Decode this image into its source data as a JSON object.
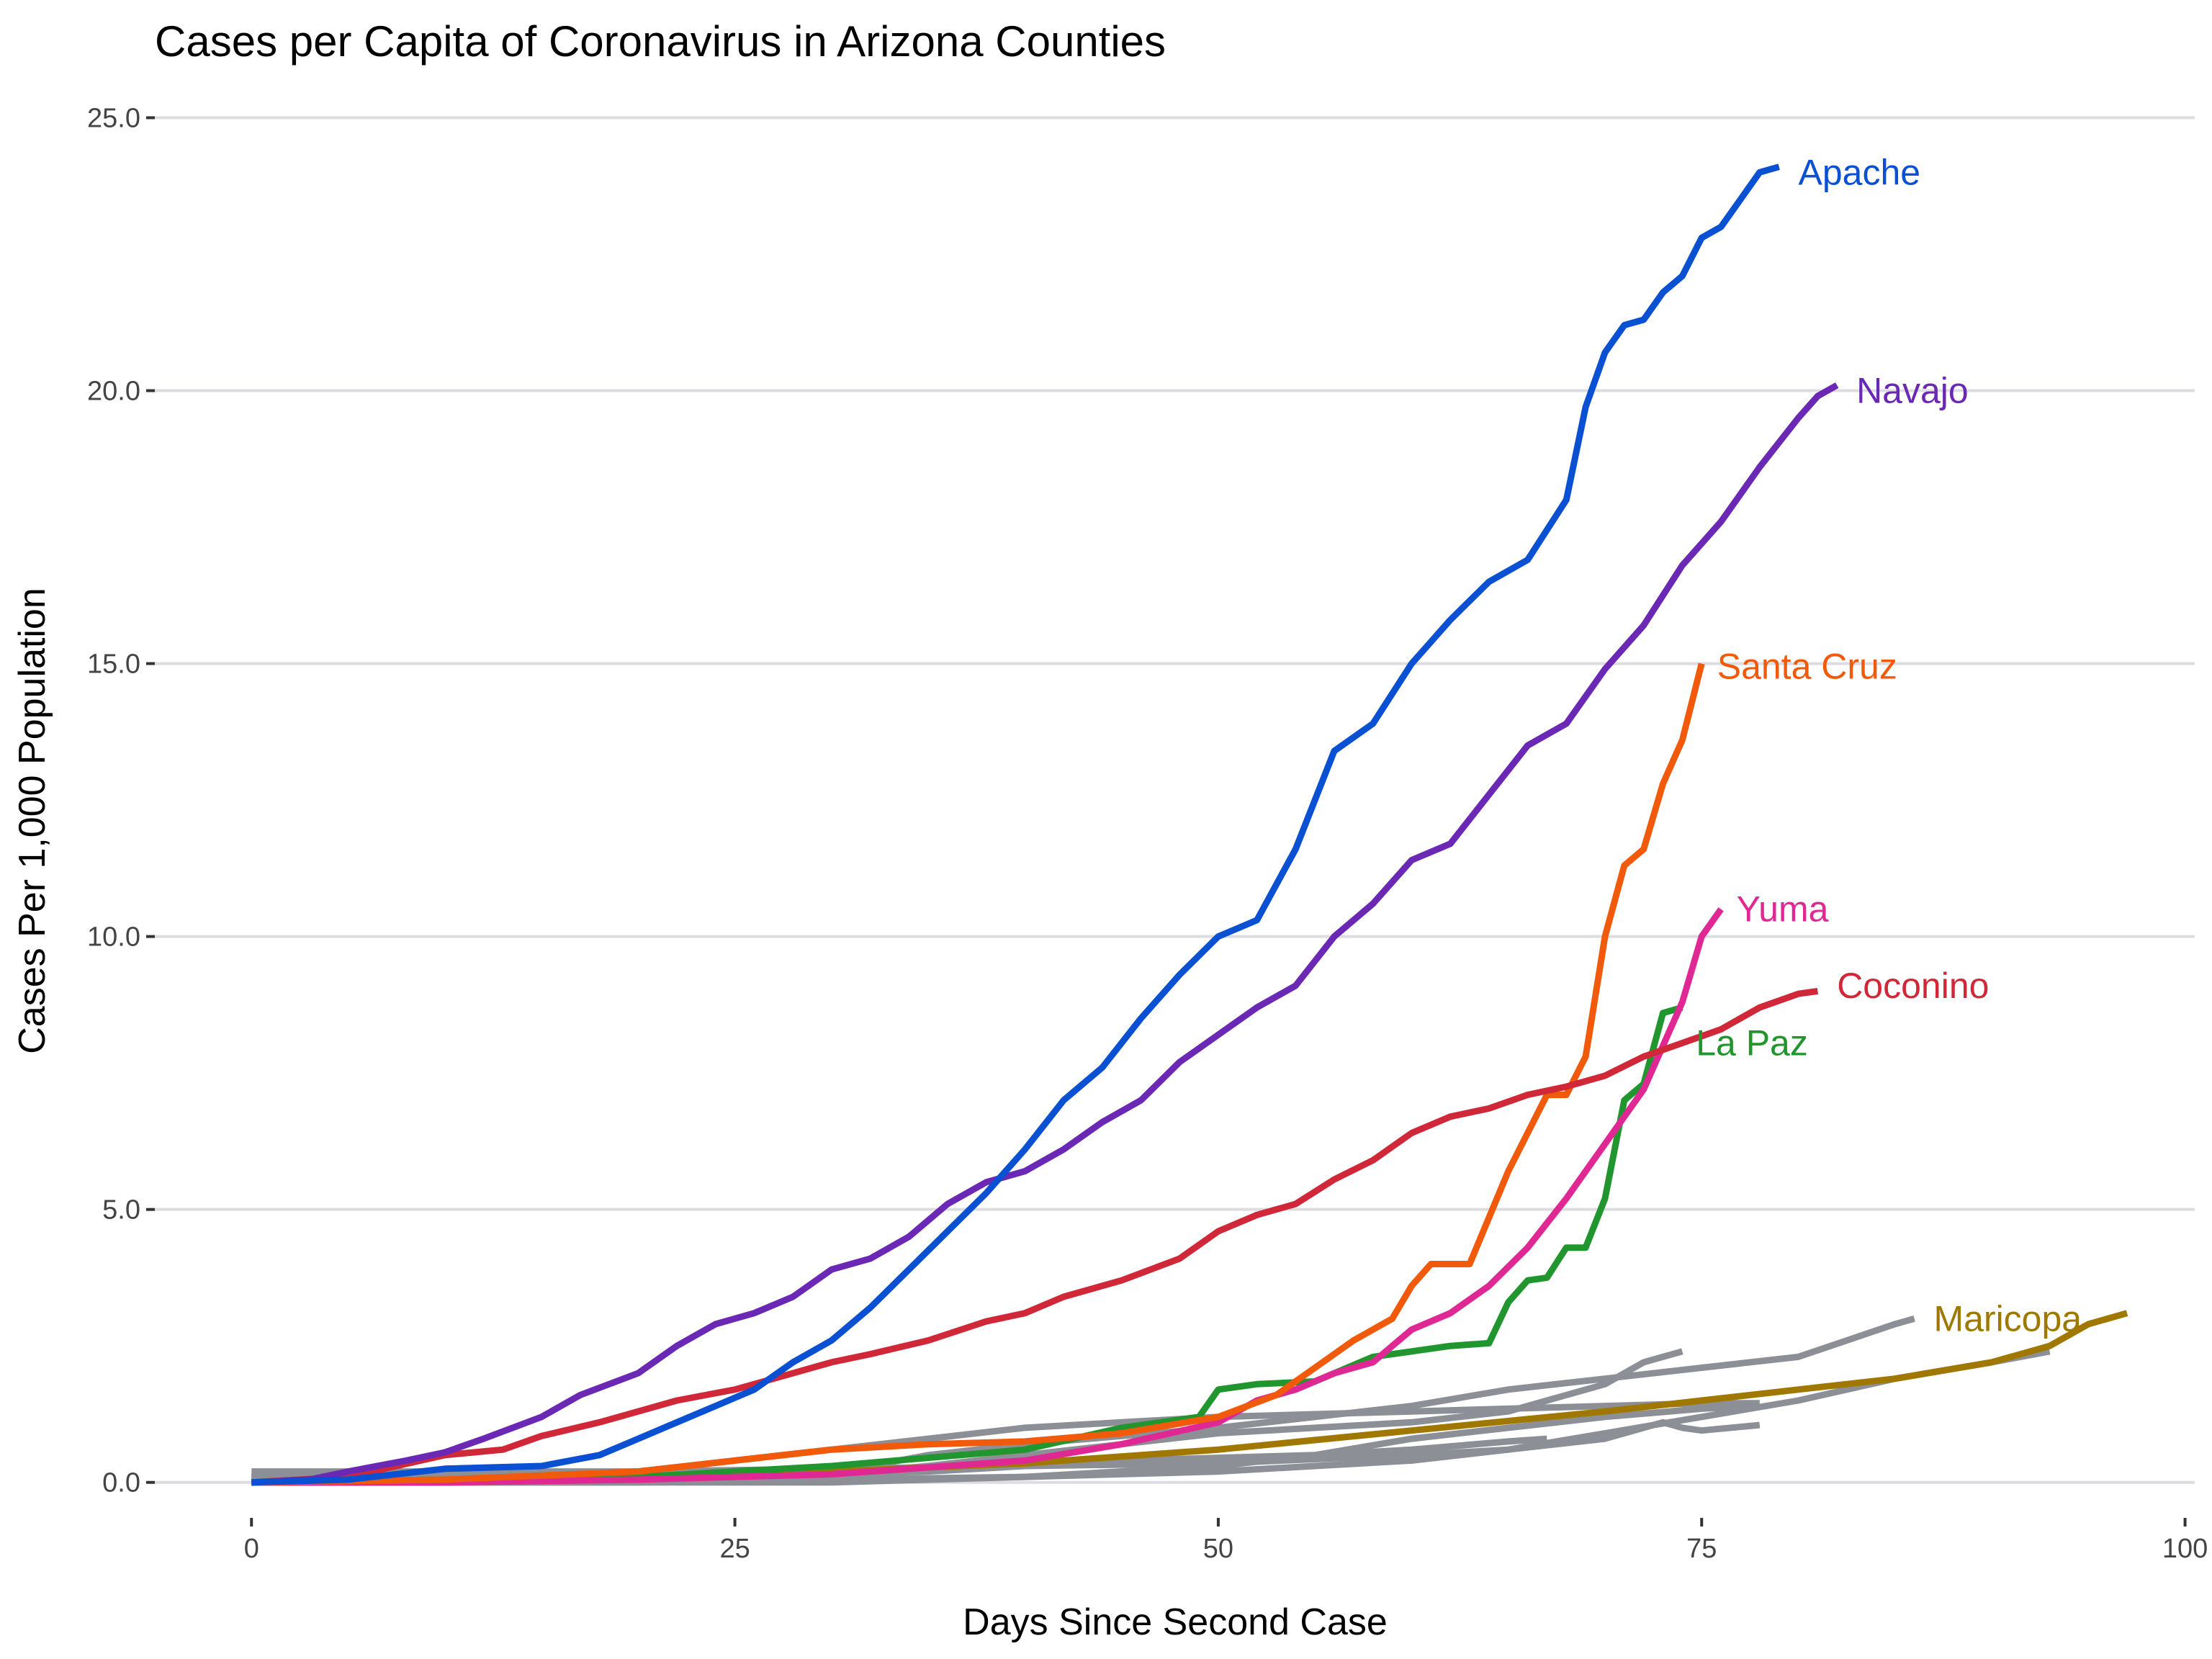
{
  "chart_data": {
    "type": "line",
    "title": "Cases per Capita of Coronavirus in Arizona Counties",
    "xlabel": "Days Since Second Case",
    "ylabel": "Cases Per 1,000 Population",
    "xlim": [
      -5,
      100.5
    ],
    "ylim": [
      -0.65,
      25.6
    ],
    "x_ticks": [
      0,
      25,
      50,
      75,
      100
    ],
    "x_tick_labels": [
      "0",
      "25",
      "50",
      "75",
      "100"
    ],
    "y_ticks": [
      0,
      5,
      10,
      15,
      20,
      25
    ],
    "y_tick_labels": [
      "0.0",
      "5.0",
      "10.0",
      "15.0",
      "20.0",
      "25.0"
    ],
    "grid": "horizontal",
    "legend": "none (direct labels at line ends)",
    "series": [
      {
        "id": "other1",
        "color": "#8c9096",
        "x": [
          0,
          5,
          10,
          15,
          20,
          25,
          30,
          32,
          35,
          40,
          45,
          50,
          55,
          60,
          65,
          70,
          75,
          80,
          85,
          86
        ],
        "y": [
          0.1,
          0.1,
          0.1,
          0.1,
          0.1,
          0.15,
          0.2,
          0.3,
          0.5,
          0.7,
          0.85,
          1.0,
          1.2,
          1.4,
          1.7,
          1.9,
          2.1,
          2.3,
          2.9,
          3.0
        ]
      },
      {
        "id": "other2",
        "color": "#8c9096",
        "x": [
          0,
          10,
          20,
          25,
          30,
          35,
          40,
          45,
          50,
          55,
          60,
          65,
          68,
          70,
          72,
          74
        ],
        "y": [
          0.0,
          0.0,
          0.05,
          0.1,
          0.15,
          0.3,
          0.5,
          0.7,
          0.9,
          1.0,
          1.1,
          1.3,
          1.6,
          1.8,
          2.2,
          2.4
        ]
      },
      {
        "id": "other3",
        "color": "#8c9096",
        "x": [
          0,
          10,
          20,
          30,
          40,
          50,
          60,
          65,
          70,
          75,
          80,
          85,
          90,
          93
        ],
        "y": [
          0.2,
          0.2,
          0.2,
          0.25,
          0.3,
          0.35,
          0.5,
          0.6,
          0.9,
          1.2,
          1.5,
          1.9,
          2.2,
          2.4
        ]
      },
      {
        "id": "other4",
        "color": "#8c9096",
        "x": [
          0,
          10,
          20,
          30,
          40,
          50,
          55,
          60,
          65,
          70,
          75,
          78
        ],
        "y": [
          0.0,
          0.0,
          0.0,
          0.05,
          0.1,
          0.3,
          0.5,
          0.8,
          1.0,
          1.2,
          1.35,
          1.4
        ]
      },
      {
        "id": "other5",
        "color": "#8c9096",
        "x": [
          0,
          10,
          20,
          30,
          40,
          50,
          55,
          60,
          65,
          70,
          73,
          74,
          75,
          78
        ],
        "y": [
          0.0,
          0.0,
          0.0,
          0.0,
          0.1,
          0.2,
          0.3,
          0.4,
          0.6,
          0.8,
          1.1,
          1.0,
          0.95,
          1.05
        ]
      },
      {
        "id": "other6",
        "color": "#8c9096",
        "x": [
          0,
          10,
          20,
          30,
          35,
          40,
          45,
          50,
          55,
          60,
          65,
          67
        ],
        "y": [
          0.1,
          0.1,
          0.1,
          0.15,
          0.2,
          0.3,
          0.4,
          0.45,
          0.5,
          0.6,
          0.75,
          0.8
        ]
      },
      {
        "id": "other7",
        "color": "#8c9096",
        "x": [
          0,
          10,
          20,
          25,
          30,
          35,
          40,
          45,
          50,
          55,
          60,
          65,
          70,
          75,
          78
        ],
        "y": [
          0.1,
          0.1,
          0.2,
          0.4,
          0.6,
          0.8,
          1.0,
          1.1,
          1.2,
          1.25,
          1.3,
          1.35,
          1.4,
          1.45,
          1.45
        ]
      },
      {
        "id": "maricopa",
        "name": "Maricopa",
        "color": "#a07800",
        "x": [
          0,
          10,
          20,
          30,
          40,
          50,
          60,
          70,
          75,
          80,
          85,
          90,
          93,
          95,
          97
        ],
        "y": [
          0.0,
          0.0,
          0.05,
          0.2,
          0.35,
          0.6,
          0.95,
          1.3,
          1.5,
          1.7,
          1.9,
          2.2,
          2.5,
          2.9,
          3.1
        ]
      },
      {
        "id": "lapaz",
        "name": "La Paz",
        "color": "#22962e",
        "x": [
          0,
          10,
          20,
          30,
          40,
          45,
          49,
          50,
          52,
          55,
          58,
          60,
          62,
          64,
          65,
          66,
          67,
          68,
          69,
          70,
          71,
          72,
          73,
          74
        ],
        "y": [
          0.0,
          0.05,
          0.1,
          0.3,
          0.6,
          1.0,
          1.2,
          1.7,
          1.8,
          1.85,
          2.3,
          2.4,
          2.5,
          2.55,
          3.3,
          3.7,
          3.75,
          4.3,
          4.3,
          5.2,
          7.0,
          7.3,
          8.6,
          8.7
        ]
      },
      {
        "id": "yuma",
        "name": "Yuma",
        "color": "#e02894",
        "x": [
          0,
          10,
          20,
          30,
          40,
          45,
          50,
          52,
          54,
          56,
          58,
          60,
          62,
          64,
          66,
          68,
          70,
          72,
          74,
          75,
          76
        ],
        "y": [
          0.0,
          0.0,
          0.05,
          0.15,
          0.4,
          0.7,
          1.1,
          1.5,
          1.7,
          2.0,
          2.2,
          2.8,
          3.1,
          3.6,
          4.3,
          5.2,
          6.2,
          7.2,
          8.8,
          10.0,
          10.5
        ]
      },
      {
        "id": "santacruz",
        "name": "Santa Cruz",
        "color": "#f05a0a",
        "x": [
          0,
          10,
          20,
          25,
          30,
          35,
          40,
          45,
          50,
          53,
          55,
          57,
          59,
          60,
          61,
          63,
          65,
          67,
          68,
          69,
          70,
          71,
          72,
          73,
          74,
          75
        ],
        "y": [
          0.0,
          0.05,
          0.2,
          0.4,
          0.6,
          0.7,
          0.75,
          0.9,
          1.2,
          1.6,
          2.1,
          2.6,
          3.0,
          3.6,
          4.0,
          4.0,
          5.7,
          7.1,
          7.1,
          7.8,
          10.0,
          11.3,
          11.6,
          12.8,
          13.6,
          15.0
        ]
      },
      {
        "id": "coconino",
        "name": "Coconino",
        "color": "#d02838",
        "x": [
          0,
          5,
          10,
          13,
          15,
          18,
          20,
          22,
          25,
          28,
          30,
          32,
          35,
          38,
          40,
          42,
          45,
          48,
          50,
          52,
          54,
          56,
          58,
          60,
          62,
          64,
          66,
          68,
          70,
          72,
          74,
          76,
          78,
          80,
          81
        ],
        "y": [
          0.0,
          0.1,
          0.5,
          0.6,
          0.85,
          1.1,
          1.3,
          1.5,
          1.7,
          2.0,
          2.2,
          2.35,
          2.6,
          2.95,
          3.1,
          3.4,
          3.7,
          4.1,
          4.6,
          4.9,
          5.1,
          5.55,
          5.9,
          6.4,
          6.7,
          6.85,
          7.1,
          7.25,
          7.45,
          7.8,
          8.05,
          8.3,
          8.7,
          8.95,
          9.0
        ]
      },
      {
        "id": "navajo",
        "name": "Navajo",
        "color": "#6a28b4",
        "x": [
          0,
          3,
          5,
          8,
          10,
          12,
          15,
          17,
          20,
          22,
          24,
          26,
          28,
          30,
          32,
          34,
          36,
          38,
          40,
          42,
          44,
          46,
          48,
          50,
          52,
          54,
          56,
          58,
          60,
          62,
          64,
          66,
          68,
          70,
          72,
          74,
          76,
          78,
          80,
          81,
          82
        ],
        "y": [
          0.0,
          0.05,
          0.2,
          0.4,
          0.55,
          0.8,
          1.2,
          1.6,
          2.0,
          2.5,
          2.9,
          3.1,
          3.4,
          3.9,
          4.1,
          4.5,
          5.1,
          5.5,
          5.7,
          6.1,
          6.6,
          7.0,
          7.7,
          8.2,
          8.7,
          9.1,
          10.0,
          10.6,
          11.4,
          11.7,
          12.6,
          13.5,
          13.9,
          14.9,
          15.7,
          16.8,
          17.6,
          18.6,
          19.5,
          19.9,
          20.1
        ]
      },
      {
        "id": "apache",
        "name": "Apache",
        "color": "#0a50d2",
        "x": [
          0,
          5,
          10,
          15,
          18,
          20,
          22,
          24,
          26,
          28,
          30,
          32,
          34,
          36,
          38,
          40,
          42,
          44,
          46,
          48,
          50,
          52,
          54,
          56,
          58,
          60,
          62,
          64,
          66,
          68,
          69,
          70,
          71,
          72,
          73,
          74,
          75,
          76,
          77,
          78,
          79
        ],
        "y": [
          0.0,
          0.05,
          0.25,
          0.3,
          0.5,
          0.8,
          1.1,
          1.4,
          1.7,
          2.2,
          2.6,
          3.2,
          3.9,
          4.6,
          5.3,
          6.1,
          7.0,
          7.6,
          8.5,
          9.3,
          10.0,
          10.3,
          11.6,
          13.4,
          13.9,
          15.0,
          15.8,
          16.5,
          16.9,
          18.0,
          19.7,
          20.7,
          21.2,
          21.3,
          21.8,
          22.1,
          22.8,
          23.0,
          23.5,
          24.0,
          24.1
        ]
      }
    ],
    "labels": [
      {
        "text": "Apache",
        "x": 80,
        "y": 24.0,
        "color": "#0a50d2"
      },
      {
        "text": "Navajo",
        "x": 83,
        "y": 20.0,
        "color": "#6a28b4"
      },
      {
        "text": "Santa Cruz",
        "x": 75.8,
        "y": 14.95,
        "color": "#f05a0a"
      },
      {
        "text": "Yuma",
        "x": 76.8,
        "y": 10.5,
        "color": "#e02894"
      },
      {
        "text": "Coconino",
        "x": 82,
        "y": 9.1,
        "color": "#d02838"
      },
      {
        "text": "La Paz",
        "x": 74.7,
        "y": 8.05,
        "color": "#22962e"
      },
      {
        "text": "Maricopa",
        "x": 87,
        "y": 3.0,
        "color": "#a07800"
      }
    ]
  }
}
